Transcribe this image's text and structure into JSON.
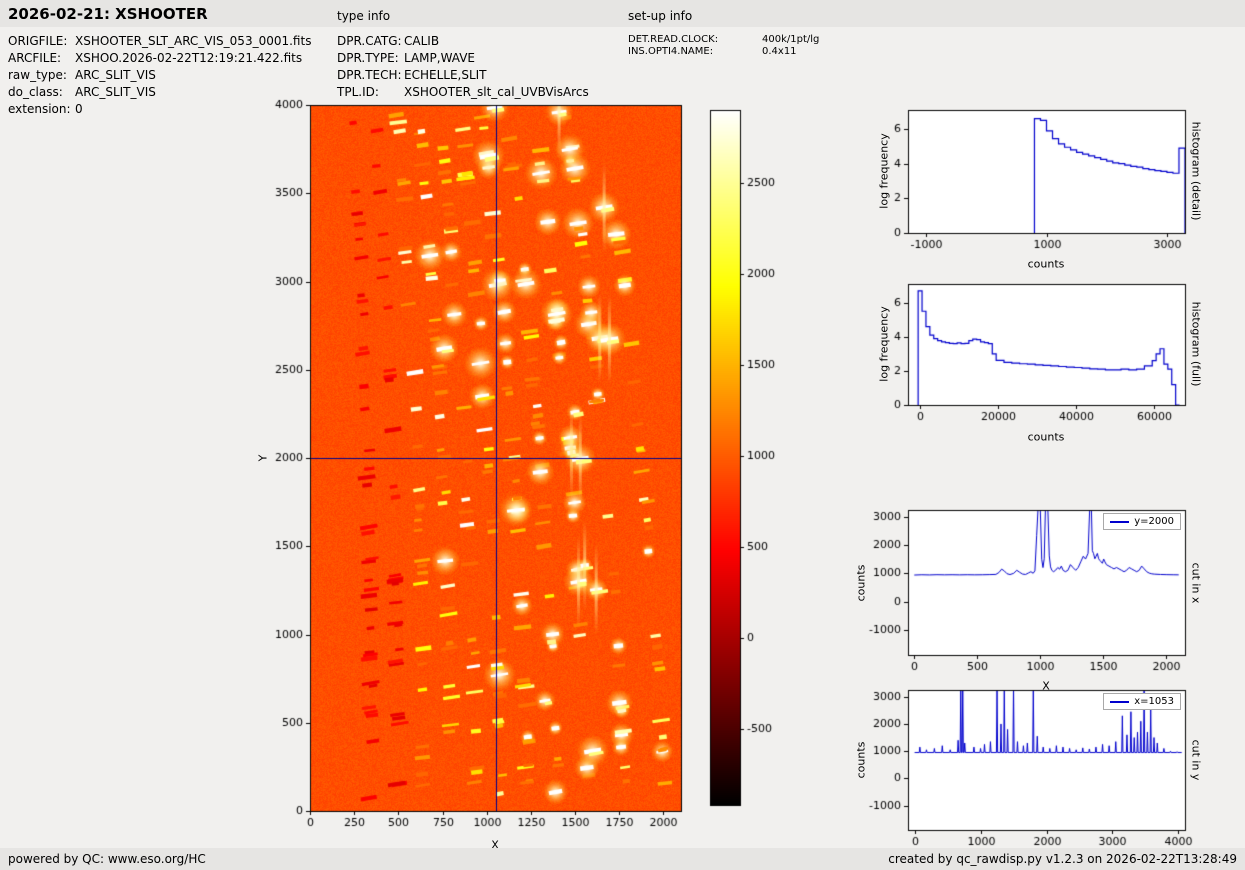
{
  "header": {
    "title": "2026-02-21: XSHOOTER",
    "type_info_heading": "type info",
    "setup_info_heading": "set-up info"
  },
  "file_info": {
    "rows": [
      {
        "label": "ORIGFILE:",
        "value": "XSHOOTER_SLT_ARC_VIS_053_0001.fits"
      },
      {
        "label": "ARCFILE:",
        "value": "XSHOO.2026-02-22T12:19:21.422.fits"
      },
      {
        "label": "raw_type:",
        "value": "ARC_SLIT_VIS"
      },
      {
        "label": "do_class:",
        "value": "ARC_SLIT_VIS"
      },
      {
        "label": "extension:",
        "value": "0"
      }
    ]
  },
  "type_info": {
    "rows": [
      {
        "label": "DPR.CATG:",
        "value": "CALIB"
      },
      {
        "label": "DPR.TYPE:",
        "value": "LAMP,WAVE"
      },
      {
        "label": "DPR.TECH:",
        "value": "ECHELLE,SLIT"
      },
      {
        "label": "TPL.ID:",
        "value": "XSHOOTER_slt_cal_UVBVisArcs"
      }
    ]
  },
  "setup_info": {
    "rows": [
      {
        "label": "DET.READ.CLOCK:",
        "value": "400k/1pt/lg"
      },
      {
        "label": "INS.OPTI4.NAME:",
        "value": "0.4x11"
      }
    ]
  },
  "footer": {
    "left": "powered by QC: www.eso.org/HC",
    "right": "created by qc_rawdisp.py v1.2.3 on 2026-02-22T13:28:49"
  },
  "chart_data": [
    {
      "id": "raw_image",
      "type": "heatmap",
      "xlabel": "X",
      "ylabel": "Y",
      "xlim": [
        0,
        2100
      ],
      "ylim": [
        0,
        4000
      ],
      "x_ticks": [
        0,
        250,
        500,
        750,
        1000,
        1250,
        1500,
        1750,
        2000
      ],
      "y_ticks": [
        0,
        500,
        1000,
        1500,
        2000,
        2500,
        3000,
        3500,
        4000
      ],
      "colormap": "hot",
      "vmin": -920,
      "vmax": 2900,
      "background_level": 920,
      "crosshair": {
        "x": 1053,
        "y": 2000
      },
      "colorbar_ticks": [
        2500,
        2000,
        1500,
        1000,
        500,
        0,
        -500
      ],
      "n_orders": 11,
      "order_centers_x": [
        330,
        470,
        610,
        750,
        880,
        1010,
        1150,
        1300,
        1470,
        1660,
        1880
      ],
      "order_weights": [
        0.18,
        0.22,
        0.28,
        0.35,
        0.42,
        0.5,
        0.62,
        0.78,
        0.95,
        1.0,
        0.7
      ],
      "render_seed": 987654321,
      "bright_features": [
        {
          "x": 1410,
          "y": 3960,
          "v": 60000
        },
        {
          "x": 1045,
          "y": 3985,
          "v": 52000
        },
        {
          "x": 1665,
          "y": 3420,
          "v": 66000
        },
        {
          "x": 1640,
          "y": 2680,
          "v": 68000
        },
        {
          "x": 1695,
          "y": 2672,
          "v": 68000
        },
        {
          "x": 1500,
          "y": 2260,
          "v": 50000
        },
        {
          "x": 1480,
          "y": 2030,
          "v": 68000
        },
        {
          "x": 1530,
          "y": 1995,
          "v": 60000
        },
        {
          "x": 1010,
          "y": 3710,
          "v": 40000
        },
        {
          "x": 1555,
          "y": 1390,
          "v": 64000
        },
        {
          "x": 1520,
          "y": 1300,
          "v": 56000
        },
        {
          "x": 1620,
          "y": 1255,
          "v": 60000
        },
        {
          "x": 1330,
          "y": 625,
          "v": 45000
        },
        {
          "x": 1600,
          "y": 340,
          "v": 40000
        },
        {
          "x": 760,
          "y": 2620,
          "v": 34000
        }
      ],
      "description": "XSHOOTER VIS raw arc-lamp echelle frame; orange background near 950 counts with bright emission-line dashes along curved echelle orders; blue crosshairs mark x=1053, y=2000"
    },
    {
      "id": "histogram_detail",
      "type": "histogram",
      "style": "step",
      "xlabel": "counts",
      "ylabel": "log frequency",
      "side_label": "histogram (detail)",
      "xlim": [
        -1300,
        3300
      ],
      "ylim": [
        0,
        7.1
      ],
      "x_ticks": [
        -1000,
        1000,
        3000
      ],
      "y_ticks": [
        0,
        2,
        4,
        6
      ],
      "line_color": "#0000cd",
      "bin_width": 100,
      "bins": [
        [
          800,
          6.6
        ],
        [
          900,
          6.5
        ],
        [
          1000,
          5.9
        ],
        [
          1100,
          5.45
        ],
        [
          1200,
          5.15
        ],
        [
          1300,
          4.95
        ],
        [
          1400,
          4.8
        ],
        [
          1500,
          4.65
        ],
        [
          1600,
          4.55
        ],
        [
          1700,
          4.45
        ],
        [
          1800,
          4.35
        ],
        [
          1900,
          4.25
        ],
        [
          2000,
          4.15
        ],
        [
          2100,
          4.05
        ],
        [
          2200,
          4.0
        ],
        [
          2300,
          3.92
        ],
        [
          2400,
          3.85
        ],
        [
          2500,
          3.8
        ],
        [
          2600,
          3.72
        ],
        [
          2700,
          3.66
        ],
        [
          2800,
          3.6
        ],
        [
          2900,
          3.56
        ],
        [
          3000,
          3.5
        ],
        [
          3100,
          3.45
        ],
        [
          3200,
          4.9
        ]
      ]
    },
    {
      "id": "histogram_full",
      "type": "histogram",
      "style": "step",
      "xlabel": "counts",
      "ylabel": "log frequency",
      "side_label": "histogram (full)",
      "xlim": [
        -3100,
        67900
      ],
      "ylim": [
        0,
        7.1
      ],
      "x_ticks": [
        0,
        20000,
        40000,
        60000
      ],
      "y_ticks": [
        0,
        2,
        4,
        6
      ],
      "line_color": "#0000cd",
      "bin_width": 1000,
      "bins": [
        [
          -500,
          6.7
        ],
        [
          500,
          5.5
        ],
        [
          1500,
          4.6
        ],
        [
          2500,
          4.1
        ],
        [
          3500,
          3.9
        ],
        [
          4500,
          3.78
        ],
        [
          5500,
          3.7
        ],
        [
          6500,
          3.66
        ],
        [
          7500,
          3.62
        ],
        [
          8500,
          3.6
        ],
        [
          9500,
          3.64
        ],
        [
          10500,
          3.6
        ],
        [
          11500,
          3.62
        ],
        [
          12500,
          3.78
        ],
        [
          13500,
          3.86
        ],
        [
          14500,
          3.84
        ],
        [
          15500,
          3.7
        ],
        [
          16500,
          3.66
        ],
        [
          17500,
          3.6
        ],
        [
          18500,
          3.0
        ],
        [
          19500,
          2.62
        ],
        [
          21500,
          2.5
        ],
        [
          23500,
          2.46
        ],
        [
          25500,
          2.42
        ],
        [
          27500,
          2.4
        ],
        [
          29500,
          2.36
        ],
        [
          31500,
          2.32
        ],
        [
          33500,
          2.3
        ],
        [
          35500,
          2.26
        ],
        [
          37500,
          2.22
        ],
        [
          39500,
          2.2
        ],
        [
          41500,
          2.16
        ],
        [
          43500,
          2.12
        ],
        [
          45500,
          2.1
        ],
        [
          47500,
          2.06
        ],
        [
          49500,
          2.06
        ],
        [
          51500,
          2.1
        ],
        [
          53500,
          2.06
        ],
        [
          55500,
          2.1
        ],
        [
          57500,
          2.3
        ],
        [
          59500,
          2.6
        ],
        [
          60500,
          3.0
        ],
        [
          61500,
          3.3
        ],
        [
          62500,
          2.4
        ],
        [
          63500,
          2.1
        ],
        [
          64500,
          1.2
        ],
        [
          65500,
          0.0
        ]
      ]
    },
    {
      "id": "cut_in_x",
      "type": "line",
      "xlabel": "X",
      "ylabel": "counts",
      "side_label": "cut in x",
      "legend": "y=2000",
      "xlim": [
        -50,
        2150
      ],
      "ylim": [
        -1900,
        3250
      ],
      "x_ticks": [
        0,
        500,
        1000,
        1500,
        2000
      ],
      "y_ticks": [
        -1000,
        0,
        1000,
        2000,
        3000
      ],
      "line_color": "#0000cd",
      "points": [
        [
          0,
          940
        ],
        [
          60,
          950
        ],
        [
          120,
          944
        ],
        [
          180,
          952
        ],
        [
          240,
          947
        ],
        [
          300,
          951
        ],
        [
          360,
          946
        ],
        [
          420,
          951
        ],
        [
          480,
          947
        ],
        [
          540,
          950
        ],
        [
          600,
          956
        ],
        [
          648,
          962
        ],
        [
          672,
          1030
        ],
        [
          694,
          1150
        ],
        [
          715,
          1085
        ],
        [
          736,
          988
        ],
        [
          760,
          957
        ],
        [
          790,
          1002
        ],
        [
          814,
          1110
        ],
        [
          836,
          1040
        ],
        [
          860,
          974
        ],
        [
          884,
          960
        ],
        [
          906,
          1012
        ],
        [
          926,
          1058
        ],
        [
          944,
          1004
        ],
        [
          958,
          1088
        ],
        [
          972,
          2350
        ],
        [
          984,
          3400
        ],
        [
          1000,
          3400
        ],
        [
          1012,
          1500
        ],
        [
          1022,
          1205
        ],
        [
          1032,
          1520
        ],
        [
          1042,
          3400
        ],
        [
          1060,
          3400
        ],
        [
          1072,
          1620
        ],
        [
          1082,
          1230
        ],
        [
          1092,
          1108
        ],
        [
          1106,
          1058
        ],
        [
          1122,
          1110
        ],
        [
          1140,
          1208
        ],
        [
          1154,
          1148
        ],
        [
          1168,
          1258
        ],
        [
          1182,
          1108
        ],
        [
          1200,
          1058
        ],
        [
          1220,
          1108
        ],
        [
          1240,
          1310
        ],
        [
          1262,
          1198
        ],
        [
          1282,
          1108
        ],
        [
          1302,
          1208
        ],
        [
          1322,
          1408
        ],
        [
          1342,
          1608
        ],
        [
          1360,
          1508
        ],
        [
          1380,
          1708
        ],
        [
          1394,
          3400
        ],
        [
          1406,
          3400
        ],
        [
          1414,
          1808
        ],
        [
          1424,
          1698
        ],
        [
          1434,
          1518
        ],
        [
          1444,
          1608
        ],
        [
          1454,
          1708
        ],
        [
          1464,
          1518
        ],
        [
          1474,
          1458
        ],
        [
          1484,
          1408
        ],
        [
          1494,
          1358
        ],
        [
          1504,
          1508
        ],
        [
          1514,
          1408
        ],
        [
          1526,
          1308
        ],
        [
          1546,
          1258
        ],
        [
          1566,
          1208
        ],
        [
          1586,
          1158
        ],
        [
          1606,
          1208
        ],
        [
          1626,
          1158
        ],
        [
          1646,
          1108
        ],
        [
          1666,
          1058
        ],
        [
          1686,
          1108
        ],
        [
          1706,
          1208
        ],
        [
          1726,
          1158
        ],
        [
          1746,
          1108
        ],
        [
          1766,
          1058
        ],
        [
          1786,
          1108
        ],
        [
          1806,
          1258
        ],
        [
          1826,
          1158
        ],
        [
          1846,
          1058
        ],
        [
          1866,
          1008
        ],
        [
          1886,
          984
        ],
        [
          1906,
          972
        ],
        [
          1956,
          960
        ],
        [
          2006,
          954
        ],
        [
          2056,
          950
        ],
        [
          2100,
          947
        ]
      ]
    },
    {
      "id": "cut_in_y",
      "type": "line",
      "xlabel": "Y",
      "ylabel": "counts",
      "side_label": "cut in y",
      "legend": "x=1053",
      "xlim": [
        -100,
        4100
      ],
      "ylim": [
        -1900,
        3250
      ],
      "x_ticks": [
        0,
        1000,
        2000,
        3000,
        4000
      ],
      "y_ticks": [
        -1000,
        0,
        1000,
        2000,
        3000
      ],
      "line_color": "#0000cd",
      "baseline": 950,
      "spikes": [
        [
          80,
          1150
        ],
        [
          180,
          1050
        ],
        [
          300,
          1100
        ],
        [
          420,
          1200
        ],
        [
          540,
          1050
        ],
        [
          660,
          1400
        ],
        [
          700,
          3400
        ],
        [
          730,
          3400
        ],
        [
          760,
          1300
        ],
        [
          900,
          1150
        ],
        [
          1000,
          1100
        ],
        [
          1060,
          1250
        ],
        [
          1150,
          1350
        ],
        [
          1250,
          3400
        ],
        [
          1310,
          2000
        ],
        [
          1360,
          3400
        ],
        [
          1410,
          1800
        ],
        [
          1500,
          3400
        ],
        [
          1560,
          1350
        ],
        [
          1650,
          1200
        ],
        [
          1710,
          1300
        ],
        [
          1800,
          3400
        ],
        [
          1860,
          1550
        ],
        [
          1950,
          1150
        ],
        [
          2050,
          1100
        ],
        [
          2150,
          1200
        ],
        [
          2250,
          1150
        ],
        [
          2350,
          1100
        ],
        [
          2450,
          1050
        ],
        [
          2550,
          1120
        ],
        [
          2650,
          1080
        ],
        [
          2750,
          1150
        ],
        [
          2850,
          1250
        ],
        [
          2950,
          1200
        ],
        [
          3050,
          1350
        ],
        [
          3150,
          2300
        ],
        [
          3220,
          1600
        ],
        [
          3280,
          2450
        ],
        [
          3330,
          1500
        ],
        [
          3380,
          1700
        ],
        [
          3430,
          2100
        ],
        [
          3480,
          3300
        ],
        [
          3530,
          1700
        ],
        [
          3580,
          2550
        ],
        [
          3630,
          1500
        ],
        [
          3680,
          1300
        ],
        [
          3780,
          1100
        ],
        [
          3880,
          1000
        ],
        [
          3980,
          980
        ]
      ]
    }
  ]
}
